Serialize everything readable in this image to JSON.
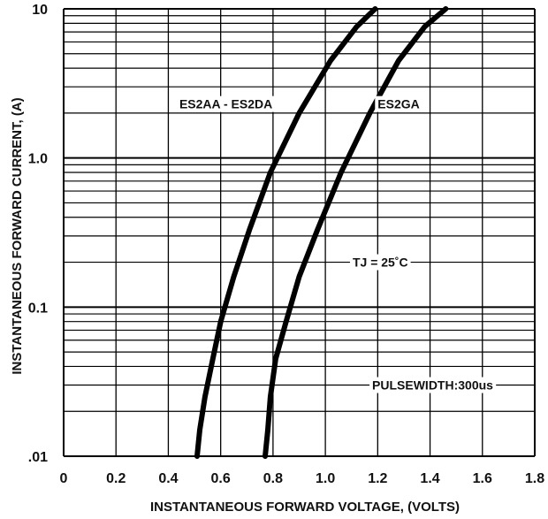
{
  "chart_data": {
    "type": "line",
    "xlabel": "INSTANTANEOUS FORWARD VOLTAGE, (VOLTS)",
    "ylabel": "INSTANTANEOUS  FORWARD CURRENT, (A)",
    "xlim": [
      0,
      1.8
    ],
    "ylim": [
      0.01,
      10
    ],
    "y_scale": "log",
    "grid": true,
    "x_ticks": [
      "0",
      "0.2",
      "0.4",
      "0.6",
      "0.8",
      "1.0",
      "1.2",
      "1.4",
      "1.6",
      "1.8"
    ],
    "y_ticks": [
      {
        "value": 0.01,
        "label": ".01"
      },
      {
        "value": 0.1,
        "label": "0.1"
      },
      {
        "value": 1,
        "label": "1.0"
      },
      {
        "value": 10,
        "label": "10"
      }
    ],
    "series": [
      {
        "name": "ES2AA - ES2DA",
        "color": "#000000",
        "x": [
          0.51,
          0.52,
          0.54,
          0.57,
          0.6,
          0.65,
          0.71,
          0.79,
          0.9,
          1.02,
          1.12,
          1.19
        ],
        "y": [
          0.01,
          0.015,
          0.025,
          0.045,
          0.08,
          0.16,
          0.33,
          0.8,
          2.0,
          4.5,
          7.6,
          10
        ]
      },
      {
        "name": "ES2GA",
        "color": "#000000",
        "x": [
          0.77,
          0.78,
          0.79,
          0.81,
          0.85,
          0.9,
          0.97,
          1.06,
          1.17,
          1.28,
          1.38,
          1.46
        ],
        "y": [
          0.01,
          0.015,
          0.025,
          0.045,
          0.08,
          0.16,
          0.33,
          0.8,
          2.0,
          4.5,
          7.6,
          10
        ]
      }
    ],
    "annotations": [
      {
        "text": "ES2AA - ES2DA",
        "x": 0.62,
        "y": 2.3
      },
      {
        "text": "ES2GA",
        "x": 1.28,
        "y": 2.3
      },
      {
        "text": "TJ = 25˚C",
        "x": 1.21,
        "y": 0.2
      },
      {
        "text": "PULSEWIDTH:300us",
        "x": 1.41,
        "y": 0.03
      }
    ]
  }
}
